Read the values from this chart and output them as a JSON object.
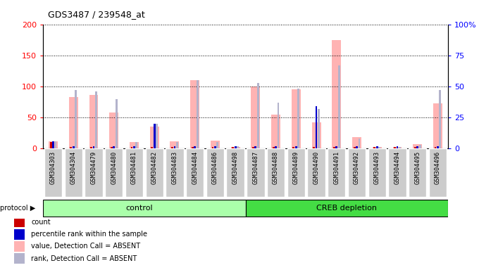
{
  "title": "GDS3487 / 239548_at",
  "samples": [
    "GSM304303",
    "GSM304304",
    "GSM304479",
    "GSM304480",
    "GSM304481",
    "GSM304482",
    "GSM304483",
    "GSM304484",
    "GSM304486",
    "GSM304498",
    "GSM304487",
    "GSM304488",
    "GSM304489",
    "GSM304490",
    "GSM304491",
    "GSM304492",
    "GSM304493",
    "GSM304494",
    "GSM304495",
    "GSM304496"
  ],
  "value_absent": [
    12,
    83,
    86,
    58,
    10,
    35,
    12,
    110,
    13,
    3,
    100,
    55,
    95,
    42,
    175,
    18,
    2,
    2,
    7,
    73
  ],
  "rank_absent": [
    6,
    47,
    46,
    40,
    5,
    20,
    5,
    55,
    5,
    2,
    53,
    37,
    48,
    32,
    67,
    8,
    1,
    1,
    3,
    47
  ],
  "count": [
    10,
    2,
    2,
    2,
    2,
    2,
    2,
    2,
    2,
    2,
    2,
    2,
    2,
    2,
    2,
    2,
    2,
    2,
    2,
    2
  ],
  "percentile_rank": [
    6,
    2,
    2,
    2,
    2,
    20,
    2,
    2,
    2,
    2,
    2,
    2,
    2,
    34,
    2,
    2,
    2,
    2,
    2,
    2
  ],
  "groups": [
    {
      "label": "control",
      "start": 0,
      "end": 10
    },
    {
      "label": "CREB depletion",
      "start": 10,
      "end": 20
    }
  ],
  "ylim_left": [
    0,
    200
  ],
  "ylim_right": [
    0,
    100
  ],
  "yticks_left": [
    0,
    50,
    100,
    150,
    200
  ],
  "yticks_right": [
    0,
    25,
    50,
    75,
    100
  ],
  "color_count": "#cc0000",
  "color_percentile": "#0000cc",
  "color_value_absent": "#ffb3b3",
  "color_rank_absent": "#b3b3cc",
  "bg_plot": "#ffffff",
  "bg_xtick": "#cccccc",
  "group_color_control": "#aaffaa",
  "group_color_creb": "#44dd44",
  "legend_items": [
    {
      "label": "count",
      "color": "#cc0000"
    },
    {
      "label": "percentile rank within the sample",
      "color": "#0000cc"
    },
    {
      "label": "value, Detection Call = ABSENT",
      "color": "#ffb3b3"
    },
    {
      "label": "rank, Detection Call = ABSENT",
      "color": "#b3b3cc"
    }
  ]
}
